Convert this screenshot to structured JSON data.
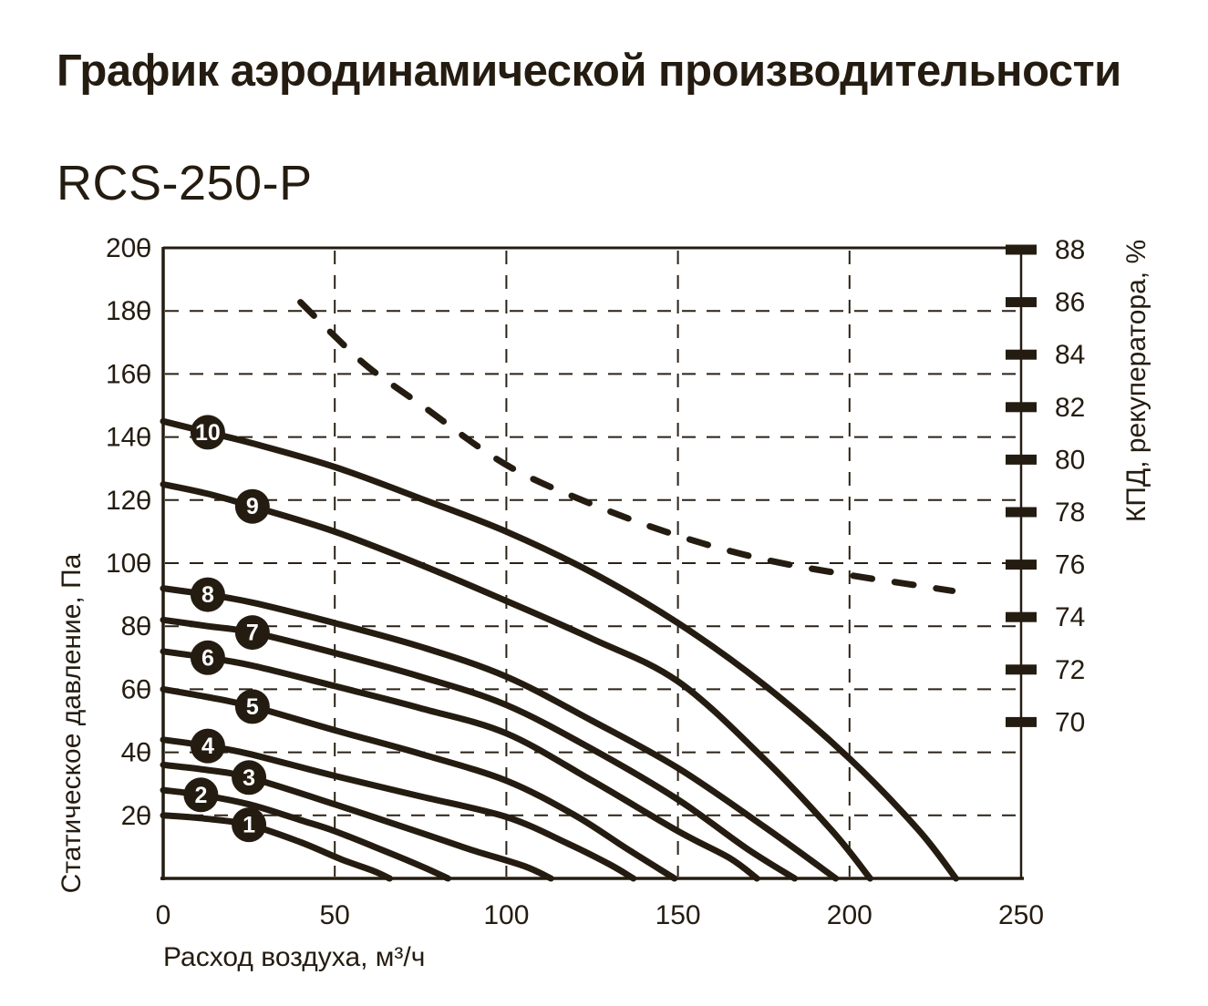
{
  "page": {
    "title": "График аэродинамической производительности",
    "model": "RCS-250-P"
  },
  "chart_data": {
    "type": "line",
    "title": "График аэродинамической производительности",
    "subtitle": "RCS-250-P",
    "colors": {
      "ink": "#251c11",
      "grid": "#2b2216",
      "badge_text": "#ffffff",
      "background": "#ffffff"
    },
    "x_axis": {
      "label": "Расход воздуха, м³/ч",
      "range": [
        0,
        250
      ],
      "ticks": [
        0,
        50,
        100,
        150,
        200,
        250
      ],
      "gridlines": [
        50,
        100,
        150,
        200
      ]
    },
    "y_axis_left": {
      "label": "Статическое давление, Па",
      "range": [
        0,
        200
      ],
      "ticks": [
        20,
        40,
        60,
        80,
        100,
        120,
        140,
        160,
        180,
        200
      ],
      "gridlines": [
        20,
        40,
        60,
        80,
        100,
        120,
        140,
        160,
        180
      ]
    },
    "y_axis_right": {
      "label": "КПД, рекуператора, %",
      "range": [
        70,
        88
      ],
      "ticks": [
        88,
        86,
        84,
        82,
        80,
        78,
        76,
        74,
        72,
        70
      ]
    },
    "grid": {
      "style": "dashed",
      "visible": true
    },
    "legend": {
      "visible": false
    },
    "series": [
      {
        "name": "1",
        "badge_flow": 25,
        "points": [
          [
            0,
            20
          ],
          [
            12,
            19
          ],
          [
            25,
            17
          ],
          [
            40,
            11.5
          ],
          [
            52,
            6
          ],
          [
            61,
            2.5
          ],
          [
            66,
            0
          ]
        ]
      },
      {
        "name": "2",
        "badge_flow": 11,
        "points": [
          [
            0,
            28
          ],
          [
            11,
            26.5
          ],
          [
            25,
            23.5
          ],
          [
            40,
            18.5
          ],
          [
            50,
            15
          ],
          [
            65,
            8.5
          ],
          [
            76,
            3.5
          ],
          [
            83,
            0
          ]
        ]
      },
      {
        "name": "3",
        "badge_flow": 25,
        "points": [
          [
            0,
            36
          ],
          [
            12,
            34.5
          ],
          [
            25,
            32
          ],
          [
            50,
            23.5
          ],
          [
            75,
            14.5
          ],
          [
            90,
            9
          ],
          [
            105,
            4
          ],
          [
            113,
            0
          ]
        ]
      },
      {
        "name": "4",
        "badge_flow": 13,
        "points": [
          [
            0,
            44
          ],
          [
            13,
            42
          ],
          [
            25,
            39.5
          ],
          [
            50,
            32.5
          ],
          [
            75,
            26
          ],
          [
            100,
            19.5
          ],
          [
            118,
            11
          ],
          [
            130,
            4.5
          ],
          [
            137,
            0
          ]
        ]
      },
      {
        "name": "5",
        "badge_flow": 26,
        "points": [
          [
            0,
            60
          ],
          [
            13,
            57.5
          ],
          [
            26,
            54.5
          ],
          [
            50,
            47
          ],
          [
            75,
            39.5
          ],
          [
            100,
            31
          ],
          [
            120,
            20
          ],
          [
            135,
            9.5
          ],
          [
            149,
            0
          ]
        ]
      },
      {
        "name": "6",
        "badge_flow": 13,
        "points": [
          [
            0,
            72
          ],
          [
            13,
            70
          ],
          [
            26,
            67.5
          ],
          [
            50,
            61
          ],
          [
            75,
            54
          ],
          [
            100,
            46
          ],
          [
            125,
            31
          ],
          [
            150,
            15
          ],
          [
            165,
            6.5
          ],
          [
            173,
            0
          ]
        ]
      },
      {
        "name": "7",
        "badge_flow": 26,
        "points": [
          [
            0,
            82
          ],
          [
            13,
            80
          ],
          [
            26,
            78
          ],
          [
            50,
            71.5
          ],
          [
            75,
            64
          ],
          [
            100,
            55
          ],
          [
            125,
            41
          ],
          [
            150,
            25
          ],
          [
            170,
            9.5
          ],
          [
            184,
            0
          ]
        ]
      },
      {
        "name": "8",
        "badge_flow": 13,
        "points": [
          [
            0,
            92
          ],
          [
            13,
            90
          ],
          [
            26,
            87.5
          ],
          [
            50,
            81
          ],
          [
            75,
            73.5
          ],
          [
            100,
            64
          ],
          [
            125,
            50
          ],
          [
            150,
            35
          ],
          [
            175,
            16.5
          ],
          [
            196,
            0
          ]
        ]
      },
      {
        "name": "9",
        "badge_flow": 26,
        "points": [
          [
            0,
            125
          ],
          [
            13,
            122
          ],
          [
            26,
            118
          ],
          [
            50,
            110
          ],
          [
            75,
            99.5
          ],
          [
            100,
            88
          ],
          [
            125,
            76
          ],
          [
            150,
            62.5
          ],
          [
            175,
            38
          ],
          [
            195,
            15
          ],
          [
            206,
            0
          ]
        ]
      },
      {
        "name": "10",
        "badge_flow": 13,
        "points": [
          [
            0,
            145
          ],
          [
            13,
            141.5
          ],
          [
            26,
            138
          ],
          [
            50,
            130.5
          ],
          [
            75,
            120.5
          ],
          [
            100,
            110
          ],
          [
            125,
            97
          ],
          [
            150,
            81
          ],
          [
            175,
            61.5
          ],
          [
            200,
            38
          ],
          [
            220,
            15.5
          ],
          [
            231,
            0
          ]
        ]
      }
    ],
    "efficiency_series": {
      "name": "КПД рекуператора",
      "axis": "right",
      "style": "dashed",
      "points": [
        [
          40,
          86
        ],
        [
          50,
          84.7
        ],
        [
          60,
          83.5
        ],
        [
          75,
          82.1
        ],
        [
          100,
          79.8
        ],
        [
          125,
          78.3
        ],
        [
          150,
          77.1
        ],
        [
          175,
          76.2
        ],
        [
          200,
          75.6
        ],
        [
          215,
          75.3
        ],
        [
          230,
          75
        ]
      ]
    }
  }
}
